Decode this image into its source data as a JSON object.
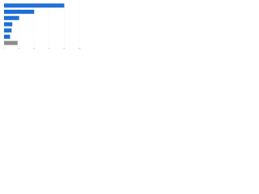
{
  "chart_data": {
    "type": "bar",
    "orientation": "horizontal",
    "categories": [
      null,
      null,
      null,
      null,
      null,
      null,
      null
    ],
    "values": [
      80,
      40,
      20,
      11,
      10,
      8,
      18
    ],
    "colors": [
      "#1f6fd6",
      "#1f6fd6",
      "#1f6fd6",
      "#1f6fd6",
      "#1f6fd6",
      "#1f6fd6",
      "#8c8c8c"
    ],
    "xlim": [
      0,
      100
    ],
    "xticks": [
      0,
      20,
      40,
      60,
      80,
      100
    ],
    "grid": true
  }
}
